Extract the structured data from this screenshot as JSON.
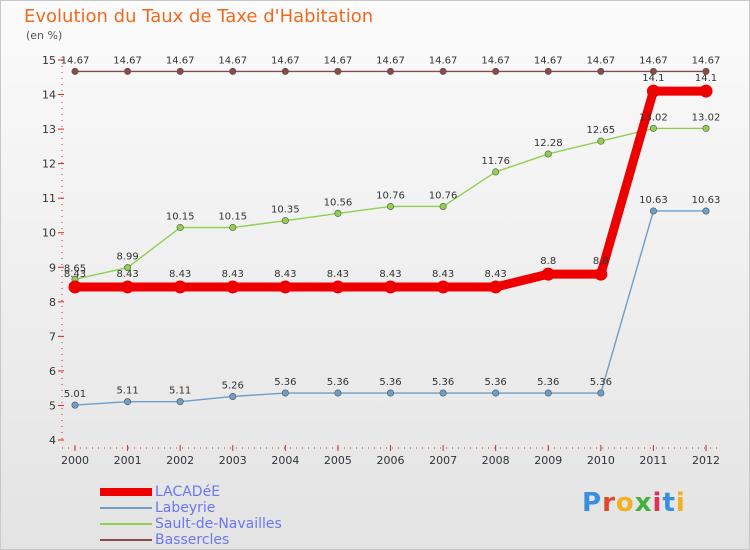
{
  "title": "Evolution du Taux de Taxe d'Habitation",
  "unit_label": "(en %)",
  "logo_text": "Proxiti",
  "logo_colors": [
    "#3a8ee0",
    "#e04a2a",
    "#f0b020",
    "#40b040",
    "#e03050",
    "#3a8ee0",
    "#f0b020"
  ],
  "chart_data": {
    "type": "line",
    "x": [
      "2000",
      "2001",
      "2002",
      "2003",
      "2004",
      "2005",
      "2006",
      "2007",
      "2008",
      "2009",
      "2010",
      "2011",
      "2012"
    ],
    "ylim": [
      4,
      15
    ],
    "yticks": [
      4,
      5,
      6,
      7,
      8,
      9,
      10,
      11,
      12,
      13,
      14,
      15
    ],
    "legend_position": "bottom-left",
    "series": [
      {
        "name": "LACADéE",
        "color": "#ee0000",
        "values": [
          8.43,
          8.43,
          8.43,
          8.43,
          8.43,
          8.43,
          8.43,
          8.43,
          8.43,
          8.8,
          8.8,
          14.1,
          14.1
        ],
        "labels": [
          "8.43",
          "8.43",
          "8.43",
          "8.43",
          "8.43",
          "8.43",
          "8.43",
          "8.43",
          "8.43",
          "8.8",
          "8.8",
          "14.1",
          "14.1"
        ]
      },
      {
        "name": "Labeyrie",
        "color": "#6c9ec8",
        "values": [
          5.01,
          5.11,
          5.11,
          5.26,
          5.36,
          5.36,
          5.36,
          5.36,
          5.36,
          5.36,
          5.36,
          10.63,
          10.63
        ],
        "labels": [
          "5.01",
          "5.11",
          "5.11",
          "5.26",
          "5.36",
          "5.36",
          "5.36",
          "5.36",
          "5.36",
          "5.36",
          "5.36",
          "10.63",
          "10.63"
        ]
      },
      {
        "name": "Sault-de-Navailles",
        "color": "#8fd14f",
        "values": [
          8.65,
          8.99,
          10.15,
          10.15,
          10.35,
          10.56,
          10.76,
          10.76,
          11.76,
          12.28,
          12.65,
          13.02,
          13.02
        ],
        "labels": [
          "8.65",
          "8.99",
          "10.15",
          "10.15",
          "10.35",
          "10.56",
          "10.76",
          "10.76",
          "11.76",
          "12.28",
          "12.65",
          "13.02",
          "13.02"
        ]
      },
      {
        "name": "Bassercles",
        "color": "#8b4a4a",
        "values": [
          14.67,
          14.67,
          14.67,
          14.67,
          14.67,
          14.67,
          14.67,
          14.67,
          14.67,
          14.67,
          14.67,
          14.67,
          14.67
        ],
        "labels": [
          "14.67",
          "14.67",
          "14.67",
          "14.67",
          "14.67",
          "14.67",
          "14.67",
          "14.67",
          "14.67",
          "14.67",
          "14.67",
          "14.67",
          "14.67"
        ]
      }
    ]
  }
}
